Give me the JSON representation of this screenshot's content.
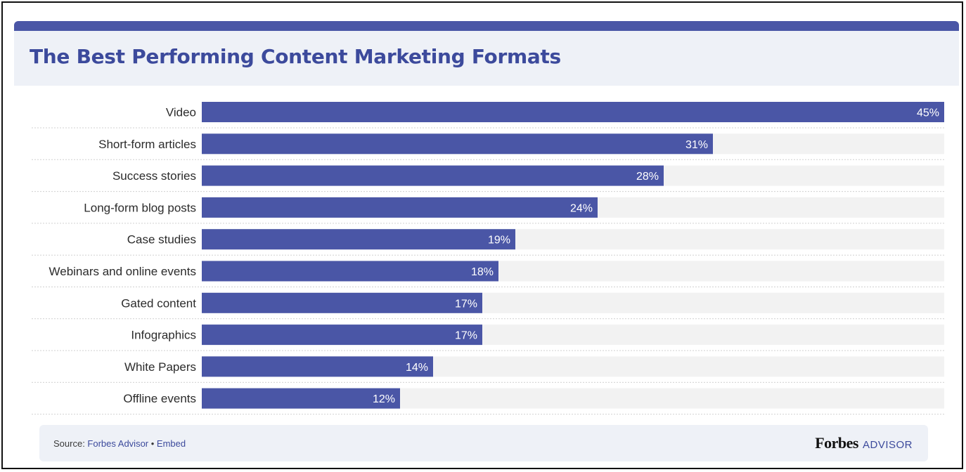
{
  "title": "The Best Performing Content Marketing Formats",
  "colors": {
    "bar": "#4a56a6",
    "track": "#f2f2f2",
    "title": "#3c4a9c",
    "header_bg": "#eef1f7",
    "separator": "#d0d0d0",
    "category_text": "#2b2b2b",
    "value_text": "#ffffff"
  },
  "chart_data": {
    "type": "bar",
    "orientation": "horizontal",
    "title": "The Best Performing Content Marketing Formats",
    "categories": [
      "Video",
      "Short-form articles",
      "Success stories",
      "Long-form blog posts",
      "Case studies",
      "Webinars and online events",
      "Gated content",
      "Infographics",
      "White Papers",
      "Offline events"
    ],
    "values": [
      45,
      31,
      28,
      24,
      19,
      18,
      17,
      17,
      14,
      12
    ],
    "value_labels": [
      "45%",
      "31%",
      "28%",
      "24%",
      "19%",
      "18%",
      "17%",
      "17%",
      "14%",
      "12%"
    ],
    "unit": "%",
    "xlim": [
      0,
      45
    ],
    "grid": false,
    "legend": "none"
  },
  "footer": {
    "source_label": "Source: ",
    "source_link": "Forbes Advisor",
    "separator": " • ",
    "embed_label": "Embed",
    "brand_name": "Forbes",
    "brand_suffix": "ADVISOR"
  }
}
